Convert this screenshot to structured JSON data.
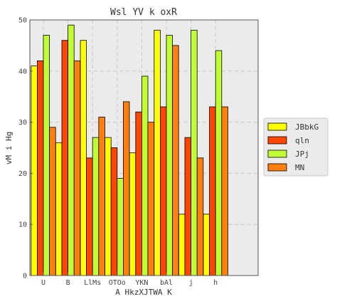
{
  "chart_data": {
    "type": "bar",
    "title": "Wsl YV k oxR",
    "xlabel": "A HkzXJTWA K",
    "ylabel": "vM i Hg",
    "ylim": [
      0,
      50
    ],
    "yticks": [
      0,
      10,
      20,
      30,
      40,
      50
    ],
    "grid": true,
    "legend_position": "right",
    "categories": [
      "U",
      "B",
      "LlMs",
      "OTOo",
      "YKN",
      "bAl",
      "j",
      "h"
    ],
    "series": [
      {
        "name": "JBbkG",
        "color": "#ffff00",
        "values": [
          41,
          26,
          46,
          27,
          24,
          48,
          12,
          12
        ]
      },
      {
        "name": "qln",
        "color": "#ff4500",
        "values": [
          42,
          46,
          23,
          25,
          32,
          33,
          27,
          33
        ]
      },
      {
        "name": "JPj",
        "color": "#c0ff33",
        "values": [
          47,
          49,
          27,
          19,
          39,
          47,
          48,
          44
        ]
      },
      {
        "name": "MN",
        "color": "#ff7f0e",
        "values": [
          29,
          42,
          31,
          34,
          30,
          45,
          23,
          33
        ]
      }
    ]
  },
  "colors": {
    "plot_background": "#ebebeb",
    "grid": "#c8c8c8",
    "bar_edge": "#000000",
    "legend_background": "#ebebeb"
  }
}
